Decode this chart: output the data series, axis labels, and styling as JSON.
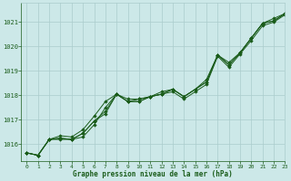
{
  "background_color": "#cce8e8",
  "grid_color": "#aacccc",
  "line_color": "#1a5c1a",
  "marker_color": "#1a5c1a",
  "text_color": "#1a5c1a",
  "xlabel": "Graphe pression niveau de la mer (hPa)",
  "xlim": [
    -0.5,
    23
  ],
  "ylim": [
    1015.3,
    1021.8
  ],
  "yticks": [
    1016,
    1017,
    1018,
    1019,
    1020,
    1021
  ],
  "xticks": [
    0,
    1,
    2,
    3,
    4,
    5,
    6,
    7,
    8,
    9,
    10,
    11,
    12,
    13,
    14,
    15,
    16,
    17,
    18,
    19,
    20,
    21,
    22,
    23
  ],
  "series": [
    [
      1015.65,
      1015.55,
      1016.2,
      1016.2,
      1016.2,
      1016.3,
      1016.8,
      1017.5,
      1018.05,
      1017.85,
      1017.85,
      1017.95,
      1018.05,
      1018.15,
      1017.85,
      1018.15,
      1018.45,
      1019.6,
      1019.15,
      1019.7,
      1020.25,
      1020.85,
      1021.0,
      1021.3
    ],
    [
      1015.65,
      1015.55,
      1016.2,
      1016.25,
      1016.2,
      1016.45,
      1016.95,
      1017.25,
      1018.05,
      1017.75,
      1017.75,
      1017.95,
      1018.05,
      1018.25,
      1017.95,
      1018.25,
      1018.55,
      1019.65,
      1019.25,
      1019.75,
      1020.35,
      1020.95,
      1021.05,
      1021.35
    ],
    [
      1015.65,
      1015.55,
      1016.2,
      1016.25,
      1016.2,
      1016.45,
      1016.95,
      1017.35,
      1018.05,
      1017.75,
      1017.75,
      1017.95,
      1018.05,
      1018.25,
      1017.95,
      1018.25,
      1018.55,
      1019.65,
      1019.25,
      1019.75,
      1020.35,
      1020.95,
      1021.05,
      1021.35
    ],
    [
      1015.65,
      1015.55,
      1016.2,
      1016.35,
      1016.3,
      1016.6,
      1017.15,
      1017.75,
      1018.05,
      1017.75,
      1017.85,
      1017.95,
      1018.15,
      1018.25,
      1017.95,
      1018.25,
      1018.65,
      1019.65,
      1019.35,
      1019.75,
      1020.35,
      1020.95,
      1021.15,
      1021.35
    ]
  ]
}
